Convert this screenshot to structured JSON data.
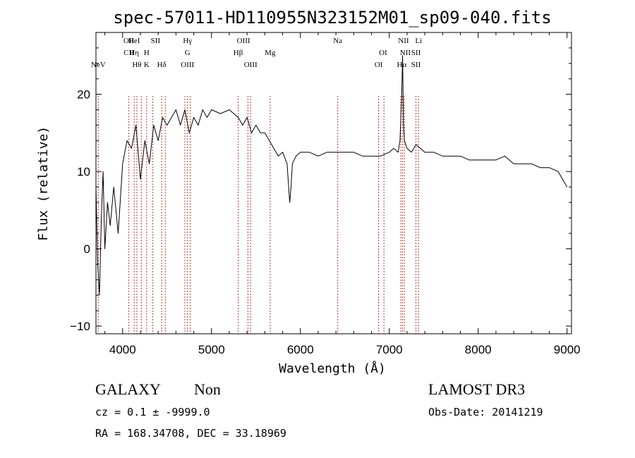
{
  "chart_data": {
    "type": "line",
    "title": "spec-57011-HD110955N323152M01_sp09-040.fits",
    "xlabel": "Wavelength (Å)",
    "ylabel": "Flux (relative)",
    "xlim": [
      3700,
      9050
    ],
    "ylim": [
      -11,
      28
    ],
    "xticks": [
      4000,
      5000,
      6000,
      7000,
      8000,
      9000
    ],
    "yticks": [
      -10,
      0,
      10,
      20
    ],
    "grid": false,
    "series": [
      {
        "name": "spectrum",
        "color": "#000000",
        "x": [
          3700,
          3720,
          3740,
          3760,
          3780,
          3800,
          3830,
          3860,
          3900,
          3950,
          4000,
          4050,
          4100,
          4150,
          4200,
          4250,
          4300,
          4350,
          4400,
          4450,
          4500,
          4550,
          4600,
          4650,
          4700,
          4750,
          4800,
          4850,
          4900,
          4950,
          5000,
          5100,
          5200,
          5300,
          5350,
          5400,
          5450,
          5500,
          5550,
          5600,
          5650,
          5700,
          5750,
          5800,
          5850,
          5880,
          5895,
          5910,
          5950,
          6000,
          6100,
          6200,
          6300,
          6400,
          6500,
          6600,
          6700,
          6800,
          6900,
          7000,
          7050,
          7100,
          7120,
          7140,
          7150,
          7160,
          7170,
          7200,
          7250,
          7300,
          7400,
          7500,
          7600,
          7700,
          7800,
          7900,
          8000,
          8100,
          8200,
          8300,
          8400,
          8500,
          8600,
          8700,
          8800,
          8900,
          8950,
          9000
        ],
        "values": [
          8,
          -2,
          -6,
          4,
          10,
          0,
          6,
          3,
          8,
          2,
          11,
          14,
          13,
          16,
          9,
          14,
          11,
          16,
          14,
          17,
          16,
          17,
          18,
          16,
          18,
          15,
          17,
          16,
          18,
          17,
          18,
          17.5,
          18,
          17,
          16,
          17,
          15,
          16,
          15,
          15,
          14,
          13,
          12,
          12.5,
          11,
          6,
          8,
          11,
          12,
          12.5,
          12.5,
          12,
          12.5,
          12.5,
          12.5,
          12.5,
          12,
          12,
          12,
          12.5,
          13,
          12.5,
          14,
          20,
          25,
          16,
          14,
          13,
          12.5,
          13.5,
          12.5,
          12.5,
          12,
          12,
          12,
          11.5,
          11.5,
          11.5,
          11.5,
          12,
          11,
          11,
          11,
          10.5,
          10.5,
          10,
          9,
          8
        ]
      }
    ],
    "spectral_lines": [
      {
        "label": "NeV",
        "wavelength": 3726,
        "row": 3
      },
      {
        "label": "OII",
        "wavelength": 4070,
        "row": 0
      },
      {
        "label": "CII",
        "wavelength": 4070,
        "row": 1
      },
      {
        "label": "HeI",
        "wavelength": 4130,
        "row": 0
      },
      {
        "label": "Hη",
        "wavelength": 4130,
        "row": 1
      },
      {
        "label": "Hθ",
        "wavelength": 4160,
        "row": 2
      },
      {
        "label": "H",
        "wavelength": 4270,
        "row": 1
      },
      {
        "label": "K",
        "wavelength": 4270,
        "row": 2
      },
      {
        "label": "SII",
        "wavelength": 4370,
        "row": 0
      },
      {
        "label": "Hδ",
        "wavelength": 4440,
        "row": 2
      },
      {
        "label": "Hγ",
        "wavelength": 4730,
        "row": 0
      },
      {
        "label": "G",
        "wavelength": 4730,
        "row": 1
      },
      {
        "label": "OIII",
        "wavelength": 4730,
        "row": 2
      },
      {
        "label": "OIII",
        "wavelength": 5360,
        "row": 0
      },
      {
        "label": "Hβ",
        "wavelength": 5300,
        "row": 1
      },
      {
        "label": "OIII",
        "wavelength": 5440,
        "row": 2
      },
      {
        "label": "Mg",
        "wavelength": 5660,
        "row": 1
      },
      {
        "label": "Na",
        "wavelength": 6420,
        "row": 0
      },
      {
        "label": "OI",
        "wavelength": 6930,
        "row": 1
      },
      {
        "label": "OI",
        "wavelength": 6880,
        "row": 2
      },
      {
        "label": "NII",
        "wavelength": 7160,
        "row": 0
      },
      {
        "label": "NII",
        "wavelength": 7180,
        "row": 1
      },
      {
        "label": "Hα",
        "wavelength": 7140,
        "row": 2
      },
      {
        "label": "Li",
        "wavelength": 7330,
        "row": 0
      },
      {
        "label": "SII",
        "wavelength": 7300,
        "row": 1
      },
      {
        "label": "SII",
        "wavelength": 7300,
        "row": 2
      }
    ],
    "marker_lines": [
      3726,
      4070,
      4130,
      4160,
      4210,
      4270,
      4340,
      4440,
      4480,
      4700,
      4730,
      4760,
      5300,
      5410,
      5440,
      5660,
      6420,
      6880,
      6940,
      7130,
      7150,
      7170,
      7300,
      7330
    ]
  },
  "info": {
    "object_class": "GALAXY",
    "subclass": "Non",
    "survey": "LAMOST DR3",
    "cz": "cz = 0.1 ± -9999.0",
    "obs_date": "Obs-Date: 20141219",
    "radec": "RA = 168.34708, DEC =  33.18969"
  },
  "colors": {
    "spectrum": "#000000",
    "marker": "#c0392b",
    "axes": "#000000",
    "background": "#ffffff"
  }
}
